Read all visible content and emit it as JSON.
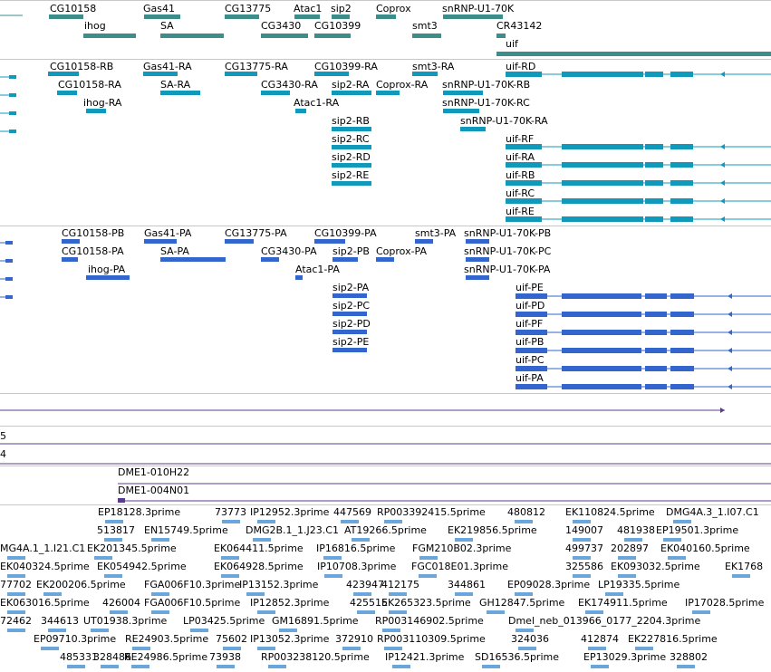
{
  "colors": {
    "gene": "#3d8d8a",
    "transcript": "#1199bb",
    "protein": "#3366cc",
    "long_line": "#5c3c8c",
    "est": "#6aa6dc",
    "divider": "#c8c8c8"
  },
  "gene_track": {
    "labels": [
      "CG10158",
      "Gas41",
      "CG13775",
      "Atac1",
      "sip2",
      "Coprox",
      "snRNP-U1-70K",
      "ihog",
      "SA",
      "CG3430",
      "CG10399",
      "smt3",
      "CR43142",
      "uif"
    ]
  },
  "transcript_track": {
    "labels": [
      "CG10158-RB",
      "Gas41-RA",
      "CG13775-RA",
      "CG10399-RA",
      "smt3-RA",
      "uif-RD",
      "CG10158-RA",
      "SA-RA",
      "CG3430-RA",
      "sip2-RA",
      "Coprox-RA",
      "snRNP-U1-70K-RB",
      "ihog-RA",
      "Atac1-RA",
      "snRNP-U1-70K-RC",
      "sip2-RB",
      "snRNP-U1-70K-RA",
      "sip2-RC",
      "uif-RF",
      "sip2-RD",
      "uif-RA",
      "sip2-RE",
      "uif-RB",
      "uif-RC",
      "uif-RE"
    ]
  },
  "protein_track": {
    "labels": [
      "CG10158-PB",
      "Gas41-PA",
      "CG13775-PA",
      "CG10399-PA",
      "smt3-PA",
      "snRNP-U1-70K-PB",
      "CG10158-PA",
      "SA-PA",
      "CG3430-PA",
      "sip2-PB",
      "Coprox-PA",
      "snRNP-U1-70K-PC",
      "ihog-PA",
      "Atac1-PA",
      "snRNP-U1-70K-PA",
      "sip2-PA",
      "uif-PE",
      "sip2-PC",
      "uif-PD",
      "sip2-PD",
      "uif-PF",
      "sip2-PE",
      "uif-PB",
      "uif-PC",
      "uif-PA"
    ]
  },
  "small_tracks": {
    "track1_label": "5",
    "track2_label": "4"
  },
  "clone_track": {
    "labels": [
      "DME1-010H22",
      "DME1-004N01"
    ]
  },
  "est_track": {
    "labels": [
      "EP18128.3prime",
      "73773",
      "IP12952.3prime",
      "447569",
      "RP003392415.5prime",
      "480812",
      "EK110824.5prime",
      "DMG4A.3_1.I07.C1",
      "513817",
      "EN15749.5prime",
      "DMG2B.1_1.J23.C1",
      "AT19266.5prime",
      "EK219856.5prime",
      "149007",
      "481938",
      "EP19501.3prime",
      "MG4A.1_1.I21.C1",
      "EK201345.5prime",
      "EK064411.5prime",
      "IP16816.5prime",
      "FGM210B02.3prime",
      "499737",
      "202897",
      "EK040160.5prime",
      "EK040324.5prime",
      "EK054942.5prime",
      "EK064928.5prime",
      "IP10708.3prime",
      "FGC018E01.3prime",
      "325586",
      "EK093032.5prime",
      "EK1768",
      "77702",
      "EK200206.5prime",
      "FGA006F10.3prime",
      "IP13152.3prime",
      "423947",
      "412175",
      "344861",
      "EP09028.3prime",
      "LP19335.5prime",
      "EK063016.5prime",
      "426004",
      "FGA006F10.5prime",
      "IP12852.3prime",
      "425515",
      "EK265323.5prime",
      "GH12847.5prime",
      "EK174911.5prime",
      "IP17028.5prime",
      "72462",
      "344613",
      "UT01938.3prime",
      "LP03425.5prime",
      "GM16891.5prime",
      "RP003146902.5prime",
      "Dmel_neb_013966_0177_2204.3prime",
      "EP09710.3prime",
      "RE24903.5prime",
      "75602",
      "IP13052.3prime",
      "372910",
      "RP003110309.5prime",
      "324036",
      "412874",
      "EK227816.5prime",
      "485331",
      "328486",
      "RE24986.5prime",
      "73938",
      "RP003238120.5prime",
      "IP12421.3prime",
      "SD16536.5prime",
      "EP13029.3prime",
      "328802"
    ]
  }
}
